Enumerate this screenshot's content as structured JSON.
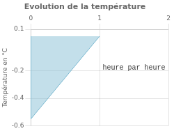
{
  "chart_data": {
    "type": "area",
    "title": "Evolution de la température",
    "ylabel": "Température en °C",
    "x": [
      0,
      0,
      1
    ],
    "values": [
      0.05,
      -0.55,
      0.05
    ],
    "color": "#7ab8d0",
    "xlim": [
      0,
      2.0
    ],
    "ylim": [
      -0.6,
      0.1
    ],
    "xticks": [
      0,
      1,
      2
    ],
    "yticks": [
      -0.6,
      -0.4,
      -0.2,
      0.1
    ],
    "grid": true,
    "annotations": [
      {
        "text": "heure par heure",
        "x": 1.5,
        "y": -0.18
      }
    ]
  }
}
